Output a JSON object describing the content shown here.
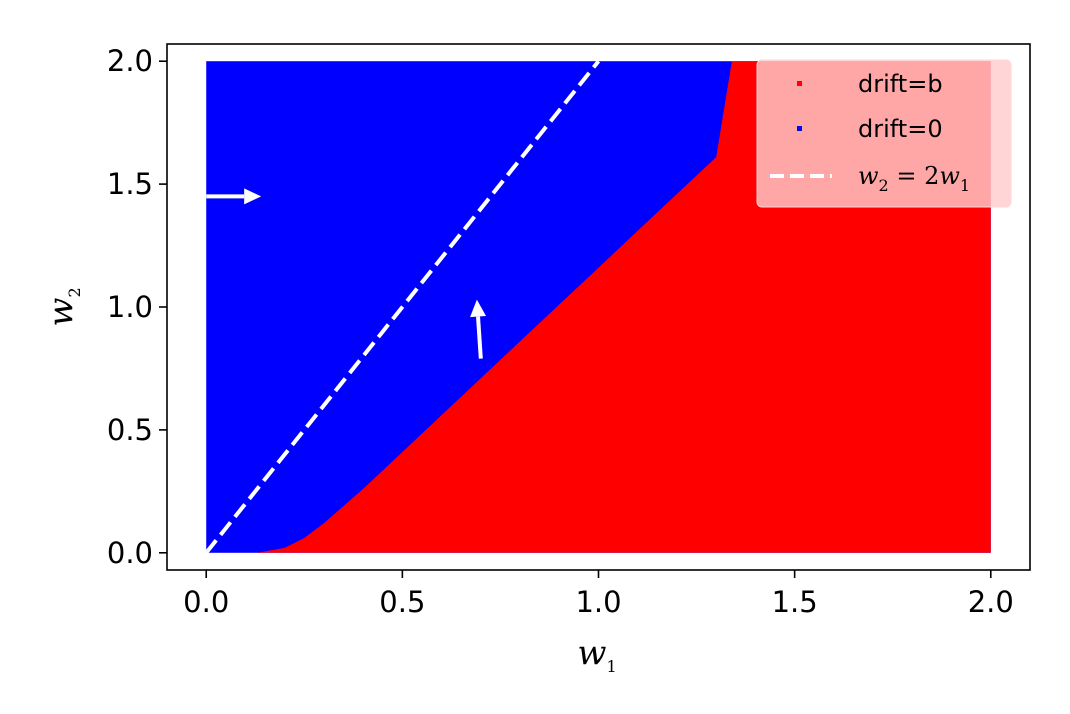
{
  "chart_data": {
    "type": "area",
    "title": "",
    "xlabel": "w",
    "xlabel_sub": "1",
    "ylabel": "w",
    "ylabel_sub": "2",
    "xlim": [
      -0.1,
      2.1
    ],
    "ylim": [
      -0.07,
      2.07
    ],
    "x_ticks": [
      0.0,
      0.5,
      1.0,
      1.5,
      2.0
    ],
    "x_tick_labels": [
      "0.0",
      "0.5",
      "1.0",
      "1.5",
      "2.0"
    ],
    "y_ticks": [
      0.0,
      0.5,
      1.0,
      1.5,
      2.0
    ],
    "y_tick_labels": [
      "0.0",
      "0.5",
      "1.0",
      "1.5",
      "2.0"
    ],
    "grid": false,
    "legend_position": "top-right",
    "region_extent": {
      "x": [
        0.0,
        2.0
      ],
      "y": [
        0.0,
        2.0
      ]
    },
    "series": [
      {
        "name": "drift=0",
        "color": "#0000ff",
        "role": "background region"
      },
      {
        "name": "drift=b",
        "color": "#ff0000",
        "role": "region right of boundary",
        "boundary_x": [
          0.13,
          0.2,
          0.25,
          0.3,
          0.35,
          0.4,
          0.5,
          0.6,
          0.7,
          0.8,
          0.9,
          1.0,
          1.1,
          1.2,
          1.3,
          1.34
        ],
        "boundary_y": [
          0.0,
          0.02,
          0.06,
          0.12,
          0.19,
          0.26,
          0.41,
          0.56,
          0.71,
          0.86,
          1.01,
          1.16,
          1.31,
          1.46,
          1.61,
          2.0
        ]
      },
      {
        "name": "w2 = 2w1",
        "legend_parts": [
          "w",
          "2",
          " = 2",
          "w",
          "1"
        ],
        "color": "#ffffff",
        "line_style": "dashed",
        "x": [
          0.0,
          1.0
        ],
        "y": [
          0.0,
          2.0
        ]
      }
    ],
    "annotations": [
      {
        "type": "arrow",
        "color": "#ffffff",
        "from": [
          0.0,
          1.45
        ],
        "to": [
          0.14,
          1.45
        ]
      },
      {
        "type": "arrow",
        "color": "#ffffff",
        "from": [
          0.7,
          0.79
        ],
        "to": [
          0.69,
          1.03
        ]
      }
    ]
  }
}
